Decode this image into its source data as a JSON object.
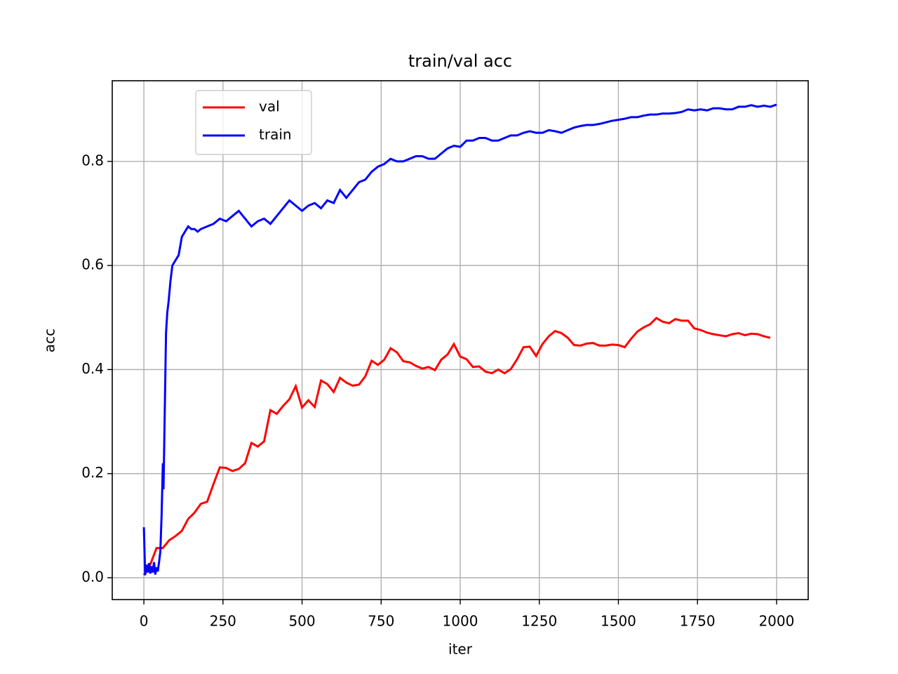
{
  "chart_data": {
    "type": "line",
    "title": "train/val acc",
    "x_label": "iter",
    "y_label": "acc",
    "xlim": [
      -100,
      2100
    ],
    "ylim": [
      -0.042,
      0.955
    ],
    "xticks": [
      0,
      250,
      500,
      750,
      1000,
      1250,
      1500,
      1750,
      2000
    ],
    "yticks": [
      {
        "value": 0,
        "label": "0.0"
      },
      0.2,
      0.4,
      0.6,
      0.8
    ],
    "grid": true,
    "legend": "upper left",
    "series": [
      {
        "name": "val",
        "color": "#ff0000",
        "x": [
          0,
          20,
          40,
          60,
          80,
          100,
          120,
          140,
          160,
          180,
          200,
          220,
          240,
          260,
          280,
          300,
          320,
          340,
          360,
          380,
          400,
          420,
          440,
          460,
          480,
          500,
          520,
          540,
          560,
          580,
          600,
          620,
          640,
          660,
          680,
          700,
          720,
          740,
          760,
          780,
          800,
          820,
          840,
          860,
          880,
          900,
          920,
          940,
          960,
          980,
          1000,
          1020,
          1040,
          1060,
          1080,
          1100,
          1120,
          1140,
          1160,
          1180,
          1200,
          1220,
          1240,
          1260,
          1280,
          1300,
          1320,
          1340,
          1360,
          1380,
          1400,
          1420,
          1440,
          1460,
          1480,
          1500,
          1520,
          1540,
          1560,
          1580,
          1600,
          1620,
          1640,
          1660,
          1680,
          1700,
          1720,
          1740,
          1760,
          1780,
          1800,
          1820,
          1840,
          1860,
          1880,
          1900,
          1920,
          1940,
          1960,
          1980
        ],
        "values": [
          0.005,
          0.025,
          0.057,
          0.057,
          0.072,
          0.08,
          0.09,
          0.113,
          0.125,
          0.142,
          0.146,
          0.18,
          0.212,
          0.211,
          0.205,
          0.209,
          0.22,
          0.259,
          0.252,
          0.262,
          0.322,
          0.315,
          0.33,
          0.343,
          0.368,
          0.327,
          0.341,
          0.328,
          0.379,
          0.372,
          0.357,
          0.384,
          0.375,
          0.369,
          0.371,
          0.387,
          0.417,
          0.409,
          0.419,
          0.441,
          0.433,
          0.416,
          0.414,
          0.407,
          0.402,
          0.405,
          0.399,
          0.419,
          0.429,
          0.449,
          0.425,
          0.42,
          0.405,
          0.406,
          0.396,
          0.393,
          0.4,
          0.393,
          0.401,
          0.42,
          0.443,
          0.444,
          0.426,
          0.449,
          0.464,
          0.474,
          0.47,
          0.461,
          0.447,
          0.446,
          0.45,
          0.451,
          0.446,
          0.446,
          0.448,
          0.447,
          0.443,
          0.459,
          0.473,
          0.481,
          0.487,
          0.499,
          0.492,
          0.489,
          0.497,
          0.494,
          0.494,
          0.479,
          0.476,
          0.471,
          0.468,
          0.466,
          0.464,
          0.468,
          0.47,
          0.466,
          0.469,
          0.468,
          0.464,
          0.461
        ]
      },
      {
        "name": "train",
        "color": "#0000ff",
        "x": [
          0,
          4,
          8,
          12,
          16,
          20,
          24,
          28,
          32,
          36,
          40,
          44,
          48,
          52,
          56,
          60,
          62,
          66,
          70,
          74,
          78,
          84,
          90,
          100,
          110,
          120,
          130,
          140,
          150,
          160,
          170,
          180,
          200,
          220,
          240,
          260,
          280,
          300,
          320,
          340,
          360,
          380,
          400,
          420,
          440,
          460,
          480,
          500,
          520,
          540,
          560,
          580,
          600,
          620,
          640,
          660,
          680,
          700,
          720,
          740,
          760,
          780,
          800,
          820,
          840,
          860,
          880,
          900,
          920,
          940,
          960,
          980,
          1000,
          1020,
          1040,
          1060,
          1080,
          1100,
          1120,
          1140,
          1160,
          1180,
          1200,
          1220,
          1240,
          1260,
          1280,
          1300,
          1320,
          1340,
          1360,
          1380,
          1400,
          1420,
          1440,
          1460,
          1480,
          1500,
          1520,
          1540,
          1560,
          1580,
          1600,
          1620,
          1640,
          1660,
          1680,
          1700,
          1720,
          1740,
          1760,
          1780,
          1800,
          1820,
          1840,
          1860,
          1880,
          1900,
          1920,
          1940,
          1960,
          1980,
          2000
        ],
        "values": [
          0.097,
          0.005,
          0.025,
          0.01,
          0.028,
          0.008,
          0.022,
          0.01,
          0.03,
          0.006,
          0.02,
          0.012,
          0.03,
          0.05,
          0.12,
          0.22,
          0.17,
          0.32,
          0.47,
          0.51,
          0.53,
          0.57,
          0.6,
          0.61,
          0.62,
          0.655,
          0.665,
          0.675,
          0.67,
          0.67,
          0.665,
          0.67,
          0.675,
          0.68,
          0.69,
          0.685,
          0.695,
          0.705,
          0.69,
          0.675,
          0.685,
          0.69,
          0.68,
          0.695,
          0.71,
          0.725,
          0.715,
          0.705,
          0.715,
          0.72,
          0.71,
          0.725,
          0.72,
          0.745,
          0.73,
          0.745,
          0.76,
          0.765,
          0.78,
          0.79,
          0.795,
          0.805,
          0.8,
          0.8,
          0.805,
          0.81,
          0.81,
          0.805,
          0.805,
          0.815,
          0.825,
          0.83,
          0.828,
          0.84,
          0.84,
          0.845,
          0.845,
          0.84,
          0.84,
          0.845,
          0.85,
          0.85,
          0.855,
          0.858,
          0.855,
          0.855,
          0.86,
          0.858,
          0.855,
          0.86,
          0.865,
          0.868,
          0.87,
          0.87,
          0.872,
          0.875,
          0.878,
          0.88,
          0.882,
          0.885,
          0.885,
          0.888,
          0.89,
          0.89,
          0.892,
          0.892,
          0.893,
          0.895,
          0.9,
          0.898,
          0.9,
          0.898,
          0.902,
          0.902,
          0.9,
          0.9,
          0.905,
          0.905,
          0.908,
          0.905,
          0.907,
          0.905,
          0.909
        ]
      }
    ]
  }
}
